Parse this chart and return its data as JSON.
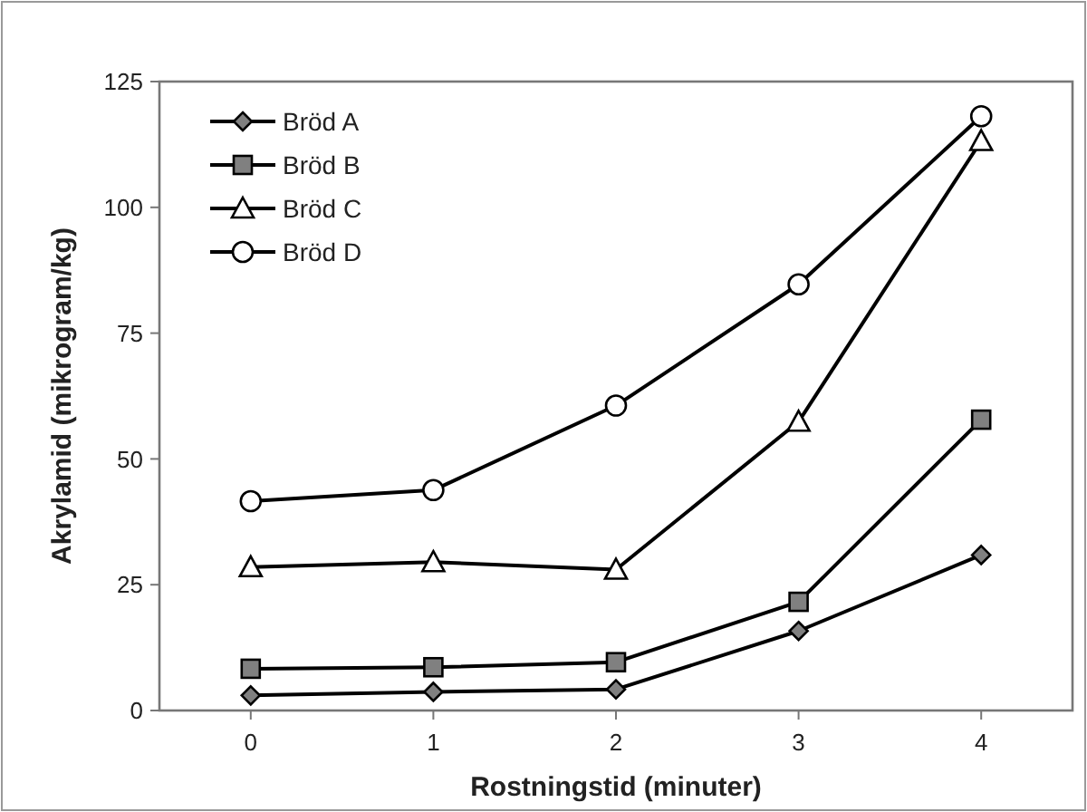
{
  "chart_data": {
    "type": "line",
    "xlabel": "Rostningstid (minuter)",
    "ylabel": "Akrylamid (mikrogram/kg)",
    "x": [
      0,
      1,
      2,
      3,
      4
    ],
    "xlim": [
      -0.5,
      4.5
    ],
    "xticks": [
      0,
      1,
      2,
      3,
      4
    ],
    "ylim": [
      0,
      125
    ],
    "yticks": [
      0,
      25,
      50,
      75,
      100,
      125
    ],
    "grid": false,
    "legend": "top left",
    "series": [
      {
        "name": "Bröd A",
        "color": "#808080",
        "marker": "diamond",
        "values": [
          3,
          3.7,
          4.2,
          15.8,
          30.9
        ]
      },
      {
        "name": "Bröd B",
        "color": "#808080",
        "marker": "square",
        "values": [
          8.3,
          8.6,
          9.6,
          21.6,
          57.8
        ]
      },
      {
        "name": "Bröd C",
        "color": "#ffffff",
        "marker": "triangle",
        "values": [
          28.5,
          29.5,
          28,
          57.4,
          113.2
        ]
      },
      {
        "name": "Bröd D",
        "color": "#ffffff",
        "marker": "circle",
        "values": [
          41.6,
          43.8,
          60.6,
          84.7,
          118.1
        ]
      }
    ]
  }
}
